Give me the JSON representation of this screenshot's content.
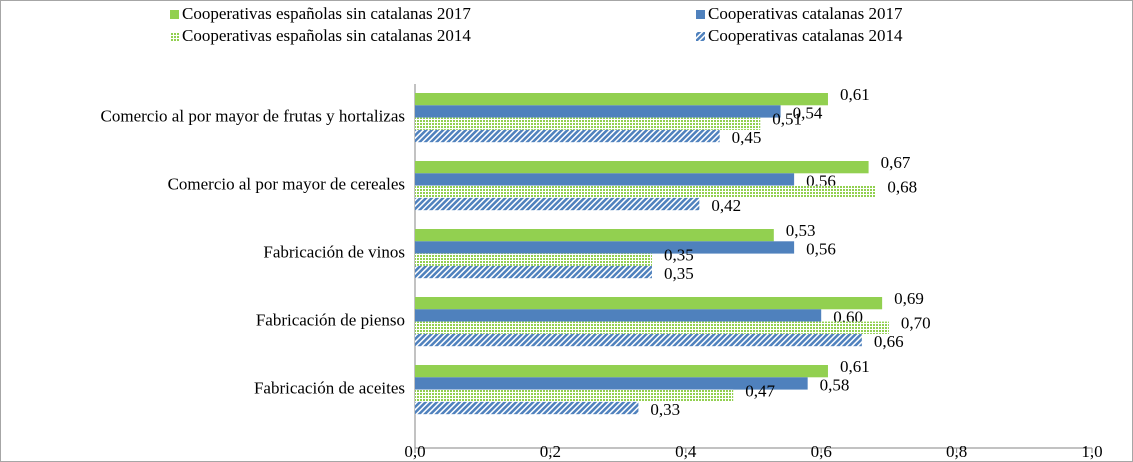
{
  "chart_data": {
    "type": "hbar",
    "categories": [
      "Comercio al por mayor de frutas y hortalizas",
      "Comercio al por mayor de cereales",
      "Fabricación de vinos",
      "Fabricación de pienso",
      "Fabricación de aceites"
    ],
    "series": [
      {
        "name": "Cooperativas españolas sin catalanas 2017",
        "color": "#92d050",
        "fill_pattern": "solid",
        "values": [
          0.61,
          0.67,
          0.53,
          0.69,
          0.61
        ],
        "value_labels": [
          "0,61",
          "0,67",
          "0,53",
          "0,69",
          "0,61"
        ]
      },
      {
        "name": "Cooperativas catalanas 2017",
        "color": "#4f81bd",
        "fill_pattern": "solid",
        "values": [
          0.54,
          0.56,
          0.56,
          0.6,
          0.58
        ],
        "value_labels": [
          "0,54",
          "0,56",
          "0,56",
          "0,60",
          "0,58"
        ]
      },
      {
        "name": "Cooperativas españolas sin catalanas 2014",
        "color": "#92d050",
        "fill_pattern": "dots",
        "values": [
          0.51,
          0.68,
          0.35,
          0.7,
          0.47
        ],
        "value_labels": [
          "0,51",
          "0,68",
          "0,35",
          "0,70",
          "0,47"
        ]
      },
      {
        "name": "Cooperativas catalanas 2014",
        "color": "#4f81bd",
        "fill_pattern": "diagonal",
        "values": [
          0.45,
          0.42,
          0.35,
          0.66,
          0.33
        ],
        "value_labels": [
          "0,45",
          "0,42",
          "0,35",
          "0,66",
          "0,33"
        ]
      }
    ],
    "xlim": [
      0,
      1
    ],
    "xticks": [
      {
        "value": 0,
        "label": "0,0"
      },
      {
        "value": 0.2,
        "label": "0,2"
      },
      {
        "value": 0.4,
        "label": "0,4"
      },
      {
        "value": 0.6,
        "label": "0,6"
      },
      {
        "value": 0.8,
        "label": "0,8"
      },
      {
        "value": 1,
        "label": "1,0"
      }
    ],
    "grid": false
  }
}
